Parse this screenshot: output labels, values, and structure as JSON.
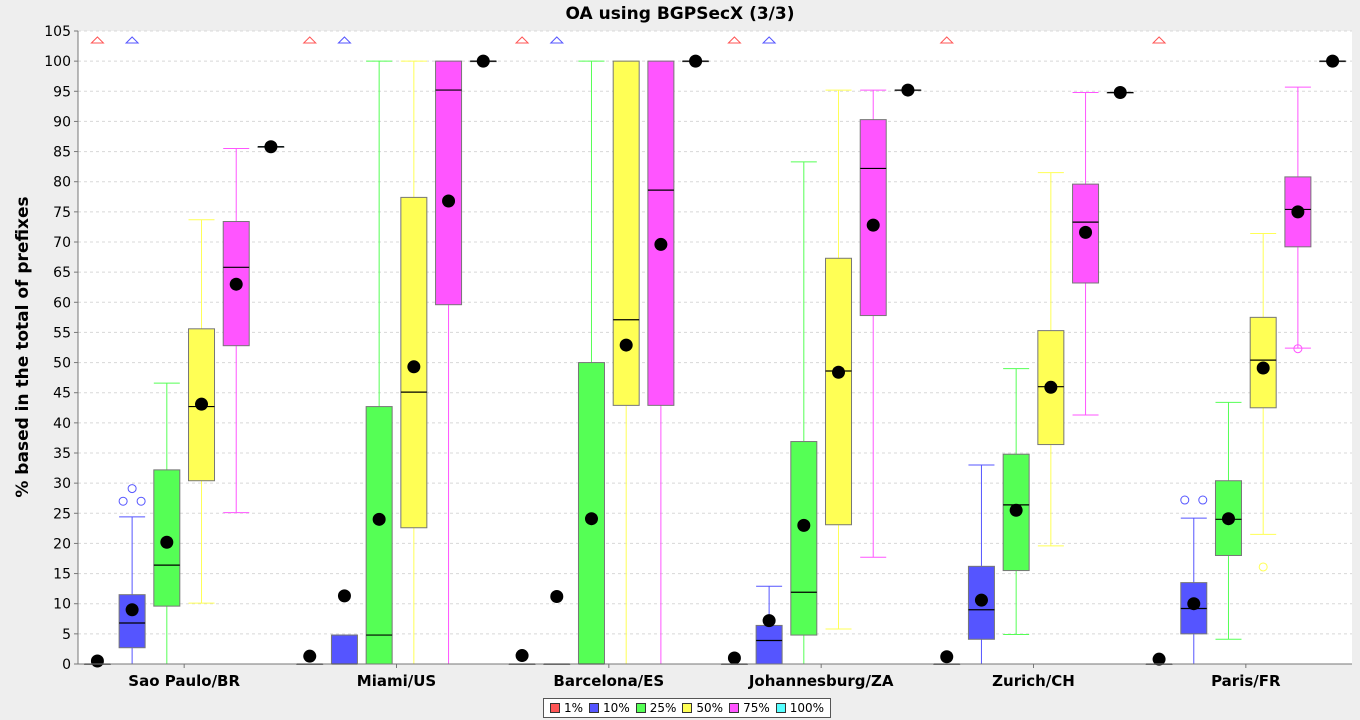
{
  "chart_data": {
    "type": "box",
    "title": "OA using BGPSecX  (3/3)",
    "xlabel": "",
    "ylabel": "% based in the total of prefixes",
    "ylim": [
      0,
      105
    ],
    "yticks": [
      0,
      5,
      10,
      15,
      20,
      25,
      30,
      35,
      40,
      45,
      50,
      55,
      60,
      65,
      70,
      75,
      80,
      85,
      90,
      95,
      100,
      105
    ],
    "grid": true,
    "legend_position": "bottom",
    "categories": [
      "Sao Paulo/BR",
      "Miami/US",
      "Barcelona/ES",
      "Johannesburg/ZA",
      "Zurich/CH",
      "Paris/FR"
    ],
    "series": [
      {
        "name": "1%",
        "color": "#ff5555"
      },
      {
        "name": "10%",
        "color": "#5555ff"
      },
      {
        "name": "25%",
        "color": "#55ff55"
      },
      {
        "name": "50%",
        "color": "#ffff55"
      },
      {
        "name": "75%",
        "color": "#ff55ff"
      },
      {
        "name": "100%",
        "color": "#55ffff"
      }
    ],
    "boxes": [
      [
        {
          "min": 0,
          "q1": 0,
          "median": 0,
          "q3": 0,
          "max": 0,
          "mean": 0.5,
          "far_out": true
        },
        {
          "min": 0,
          "q1": 2.7,
          "median": 6.8,
          "q3": 11.5,
          "max": 24.4,
          "mean": 9.0,
          "outliers": [
            27.0,
            29.1,
            27.0
          ],
          "far_out": true
        },
        {
          "min": 0,
          "q1": 9.6,
          "median": 16.4,
          "q3": 32.2,
          "max": 46.6,
          "mean": 20.2
        },
        {
          "min": 10.1,
          "q1": 30.4,
          "median": 42.7,
          "q3": 55.6,
          "max": 73.7,
          "mean": 43.1
        },
        {
          "min": 25.1,
          "q1": 52.8,
          "median": 65.8,
          "q3": 73.4,
          "max": 85.5,
          "mean": 63.0
        },
        {
          "min": 85.8,
          "q1": 85.8,
          "median": 85.8,
          "q3": 85.8,
          "max": 85.8,
          "mean": 85.8
        }
      ],
      [
        {
          "min": 0,
          "q1": 0,
          "median": 0,
          "q3": 0,
          "max": 0,
          "mean": 1.3,
          "far_out": true
        },
        {
          "min": 0,
          "q1": 0,
          "median": 0,
          "q3": 4.8,
          "max": 4.8,
          "mean": 11.3,
          "far_out": true
        },
        {
          "min": 0,
          "q1": 0,
          "median": 4.8,
          "q3": 42.7,
          "max": 100,
          "mean": 24.0
        },
        {
          "min": 0,
          "q1": 22.6,
          "median": 45.1,
          "q3": 77.4,
          "max": 100,
          "mean": 49.3
        },
        {
          "min": 0,
          "q1": 59.6,
          "median": 95.2,
          "q3": 100,
          "max": 100,
          "mean": 76.8
        },
        {
          "min": 100,
          "q1": 100,
          "median": 100,
          "q3": 100,
          "max": 100,
          "mean": 100
        }
      ],
      [
        {
          "min": 0,
          "q1": 0,
          "median": 0,
          "q3": 0,
          "max": 0,
          "mean": 1.4,
          "far_out": true
        },
        {
          "min": 0,
          "q1": 0,
          "median": 0,
          "q3": 0,
          "max": 0,
          "mean": 11.2,
          "far_out": true
        },
        {
          "min": 0,
          "q1": 0,
          "median": 0,
          "q3": 50,
          "max": 100,
          "mean": 24.1
        },
        {
          "min": 0,
          "q1": 42.9,
          "median": 57.1,
          "q3": 100,
          "max": 100,
          "mean": 52.9
        },
        {
          "min": 0,
          "q1": 42.9,
          "median": 78.6,
          "q3": 100,
          "max": 100,
          "mean": 69.6
        },
        {
          "min": 100,
          "q1": 100,
          "median": 100,
          "q3": 100,
          "max": 100,
          "mean": 100
        }
      ],
      [
        {
          "min": 0,
          "q1": 0,
          "median": 0,
          "q3": 0,
          "max": 0,
          "mean": 1.0,
          "far_out": true
        },
        {
          "min": 0,
          "q1": 0,
          "median": 3.9,
          "q3": 6.4,
          "max": 12.9,
          "mean": 7.2,
          "far_out": true
        },
        {
          "min": 0,
          "q1": 4.8,
          "median": 11.9,
          "q3": 36.9,
          "max": 83.3,
          "mean": 23.0
        },
        {
          "min": 5.8,
          "q1": 23.1,
          "median": 48.6,
          "q3": 67.3,
          "max": 95.2,
          "mean": 48.4
        },
        {
          "min": 17.7,
          "q1": 57.8,
          "median": 82.2,
          "q3": 90.3,
          "max": 95.2,
          "mean": 72.8
        },
        {
          "min": 95.2,
          "q1": 95.2,
          "median": 95.2,
          "q3": 95.2,
          "max": 95.2,
          "mean": 95.2
        }
      ],
      [
        {
          "min": 0,
          "q1": 0,
          "median": 0,
          "q3": 0,
          "max": 0,
          "mean": 1.2,
          "far_out": true
        },
        {
          "min": 0,
          "q1": 4.1,
          "median": 9.0,
          "q3": 16.2,
          "max": 33.0,
          "mean": 10.6
        },
        {
          "min": 4.9,
          "q1": 15.5,
          "median": 26.4,
          "q3": 34.8,
          "max": 49.0,
          "mean": 25.5
        },
        {
          "min": 19.6,
          "q1": 36.4,
          "median": 46.0,
          "q3": 55.3,
          "max": 81.5,
          "mean": 45.9
        },
        {
          "min": 41.3,
          "q1": 63.2,
          "median": 73.3,
          "q3": 79.6,
          "max": 94.8,
          "mean": 71.6
        },
        {
          "min": 94.8,
          "q1": 94.8,
          "median": 94.8,
          "q3": 94.8,
          "max": 94.8,
          "mean": 94.8
        }
      ],
      [
        {
          "min": 0,
          "q1": 0,
          "median": 0,
          "q3": 0,
          "max": 0,
          "mean": 0.8,
          "far_out": true
        },
        {
          "min": 0,
          "q1": 5.0,
          "median": 9.2,
          "q3": 13.5,
          "max": 24.2,
          "mean": 10.0,
          "outliers": [
            27.2,
            27.2
          ]
        },
        {
          "min": 4.1,
          "q1": 18.0,
          "median": 24.0,
          "q3": 30.4,
          "max": 43.4,
          "mean": 24.1
        },
        {
          "min": 21.5,
          "q1": 42.5,
          "median": 50.4,
          "q3": 57.5,
          "max": 71.4,
          "mean": 49.1,
          "outliers": [
            16.1
          ]
        },
        {
          "min": 52.4,
          "q1": 69.2,
          "median": 75.4,
          "q3": 80.8,
          "max": 95.7,
          "mean": 75.0,
          "outliers": [
            52.3
          ]
        },
        {
          "min": 100,
          "q1": 100,
          "median": 100,
          "q3": 100,
          "max": 100,
          "mean": 100
        }
      ]
    ]
  }
}
